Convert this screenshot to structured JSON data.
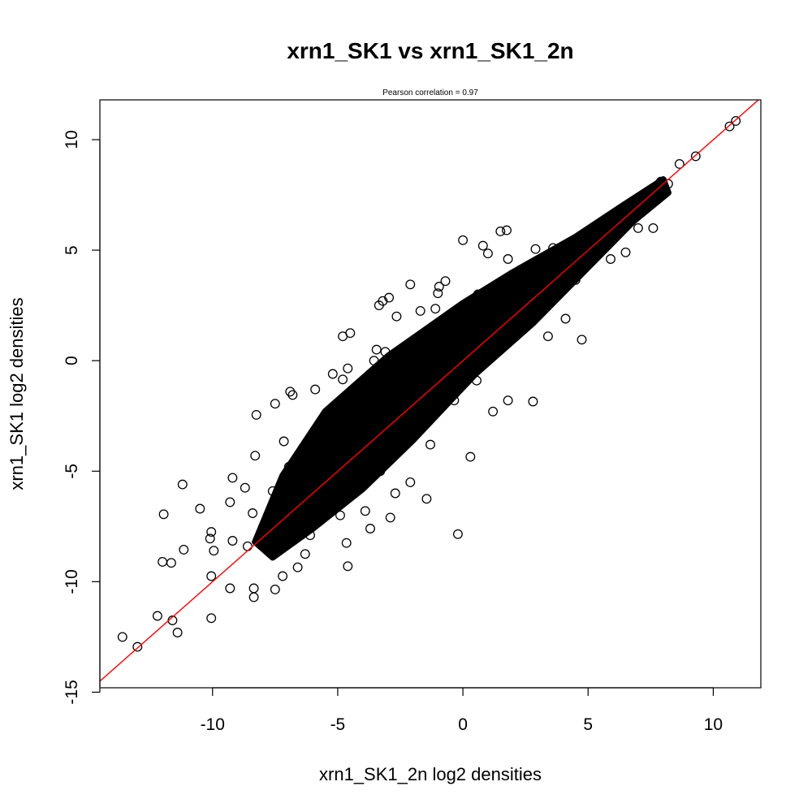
{
  "chart_data": {
    "type": "scatter",
    "title": "xrn1_SK1 vs xrn1_SK1_2n",
    "subtitle": "Pearson correlation =  0.97",
    "xlabel": "xrn1_SK1_2n log2 densities",
    "ylabel": "xrn1_SK1 log2 densities",
    "xlim": [
      -14.5,
      11.9
    ],
    "ylim": [
      -14.8,
      11.8
    ],
    "x_ticks": [
      -10,
      -5,
      0,
      5,
      10
    ],
    "y_ticks": [
      -15,
      -10,
      -5,
      0,
      5,
      10
    ],
    "x_tick_labels": [
      "-10",
      "-5",
      "0",
      "5",
      "10"
    ],
    "y_tick_labels": [
      "-15",
      "-10",
      "-5",
      "0",
      "5",
      "10"
    ],
    "grid": false,
    "reference_line": {
      "slope": 1,
      "intercept": 0,
      "color": "#ff0000"
    },
    "marker_color": "#000000",
    "points": [
      [
        10.9,
        10.85
      ],
      [
        10.65,
        10.6
      ],
      [
        9.3,
        9.25
      ],
      [
        8.65,
        8.9
      ],
      [
        8.2,
        8.0
      ],
      [
        7.9,
        8.1
      ],
      [
        7.6,
        7.5
      ],
      [
        7.2,
        7.3
      ],
      [
        6.8,
        6.9
      ],
      [
        6.1,
        6.2
      ],
      [
        5.8,
        5.6
      ],
      [
        5.3,
        5.0
      ],
      [
        -13.6,
        -12.5
      ],
      [
        -13.0,
        -12.95
      ],
      [
        -12.2,
        -11.55
      ],
      [
        -11.6,
        -11.75
      ],
      [
        -11.4,
        -12.3
      ],
      [
        -10.05,
        -11.65
      ],
      [
        -9.3,
        -10.3
      ],
      [
        -8.35,
        -10.7
      ],
      [
        -8.35,
        -10.3
      ],
      [
        -7.5,
        -10.35
      ],
      [
        -7.2,
        -9.75
      ],
      [
        -6.6,
        -9.35
      ],
      [
        -4.6,
        -9.3
      ],
      [
        -4.65,
        -8.25
      ],
      [
        -3.7,
        -7.6
      ],
      [
        -2.9,
        -7.1
      ],
      [
        -1.45,
        -6.25
      ],
      [
        -0.2,
        -7.85
      ],
      [
        0.3,
        -4.35
      ],
      [
        1.2,
        -2.3
      ],
      [
        1.8,
        -1.8
      ],
      [
        2.8,
        -1.85
      ],
      [
        4.75,
        0.95
      ],
      [
        -12.0,
        -9.1
      ],
      [
        -11.65,
        -9.15
      ],
      [
        -11.15,
        -8.55
      ],
      [
        -11.2,
        -5.6
      ],
      [
        -11.95,
        -6.95
      ],
      [
        -10.5,
        -6.7
      ],
      [
        -10.1,
        -8.05
      ],
      [
        -9.95,
        -8.6
      ],
      [
        -10.05,
        -9.75
      ],
      [
        -8.4,
        -6.9
      ],
      [
        -8.7,
        -5.75
      ],
      [
        -7.6,
        -5.9
      ],
      [
        -8.3,
        -4.3
      ],
      [
        -8.25,
        -2.45
      ],
      [
        -7.5,
        -1.95
      ],
      [
        -7.15,
        -3.65
      ],
      [
        -6.95,
        -4.8
      ],
      [
        -5.3,
        -3.45
      ],
      [
        -4.8,
        -0.85
      ],
      [
        -4.8,
        1.1
      ],
      [
        -4.5,
        1.25
      ],
      [
        -4.6,
        -0.35
      ],
      [
        -3.55,
        0.0
      ],
      [
        -3.45,
        0.5
      ],
      [
        -3.1,
        0.4
      ],
      [
        -3.35,
        2.5
      ],
      [
        -3.2,
        2.7
      ],
      [
        -2.95,
        2.85
      ],
      [
        -2.65,
        2.0
      ],
      [
        -2.1,
        3.45
      ],
      [
        -1.7,
        2.25
      ],
      [
        -1.1,
        2.35
      ],
      [
        -1.0,
        3.05
      ],
      [
        -0.95,
        3.35
      ],
      [
        -0.7,
        3.6
      ],
      [
        0.0,
        5.45
      ],
      [
        0.8,
        5.2
      ],
      [
        1.0,
        4.85
      ],
      [
        1.5,
        5.85
      ],
      [
        1.75,
        5.9
      ],
      [
        1.8,
        4.6
      ],
      [
        2.9,
        5.05
      ],
      [
        3.6,
        5.1
      ],
      [
        2.2,
        2.1
      ],
      [
        -5.9,
        -1.3
      ],
      [
        -6.8,
        -1.55
      ],
      [
        -6.9,
        -1.4
      ],
      [
        -6.6,
        -6.45
      ],
      [
        -5.4,
        -6.3
      ],
      [
        -4.9,
        -7.0
      ],
      [
        -3.3,
        -5.0
      ],
      [
        -2.7,
        -6.0
      ],
      [
        -2.1,
        -5.5
      ],
      [
        -3.9,
        -6.8
      ],
      [
        -6.3,
        -8.75
      ],
      [
        -6.1,
        -7.9
      ],
      [
        -7.75,
        -8.35
      ],
      [
        -8.6,
        -8.4
      ],
      [
        -9.2,
        -8.15
      ],
      [
        -10.05,
        -7.75
      ],
      [
        -9.3,
        -6.4
      ],
      [
        -9.2,
        -5.3
      ],
      [
        -0.35,
        -1.8
      ],
      [
        0.55,
        -0.9
      ],
      [
        -1.3,
        -3.8
      ],
      [
        3.4,
        1.1
      ],
      [
        4.1,
        1.9
      ],
      [
        4.5,
        3.65
      ],
      [
        5.9,
        4.6
      ],
      [
        6.5,
        4.9
      ],
      [
        7.0,
        6.0
      ],
      [
        7.6,
        6.0
      ],
      [
        2.4,
        4.1
      ],
      [
        1.6,
        3.2
      ],
      [
        0.6,
        3.0
      ],
      [
        -2.4,
        0.4
      ],
      [
        -5.2,
        -0.6
      ]
    ]
  }
}
